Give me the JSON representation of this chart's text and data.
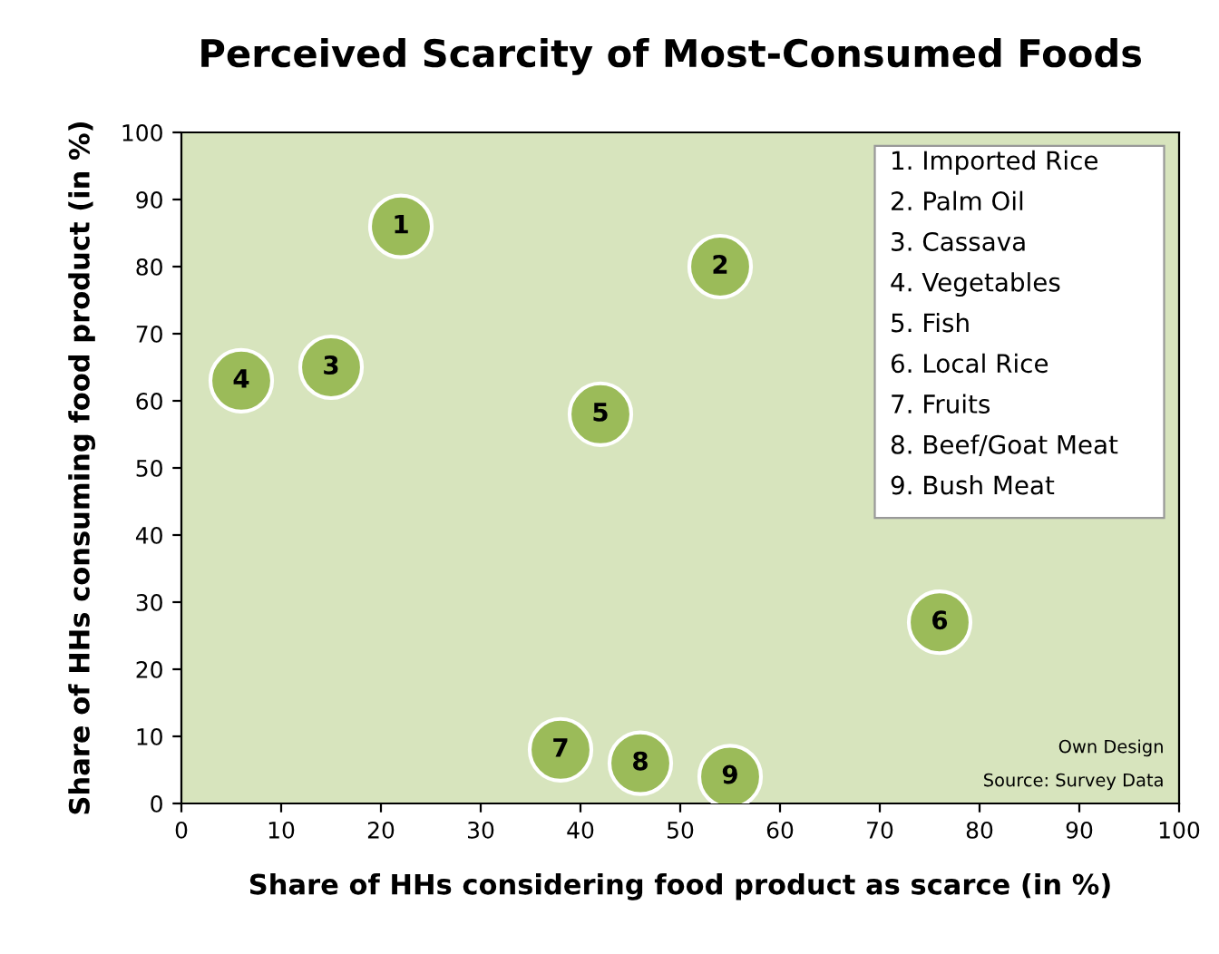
{
  "chart_data": {
    "type": "scatter",
    "title": "Perceived Scarcity of Most-Consumed Foods",
    "xlabel": "Share of HHs considering food product as scarce (in %)",
    "ylabel": "Share of HHs consuming food product (in %)",
    "x": [
      22,
      54,
      15,
      6,
      42,
      76,
      38,
      46,
      55
    ],
    "series": [
      {
        "color": "#9bbb59",
        "values": [
          86,
          80,
          65,
          63,
          58,
          27,
          8,
          6,
          4
        ]
      }
    ],
    "value_labels": [
      "1",
      "2",
      "3",
      "4",
      "5",
      "6",
      "7",
      "8",
      "9"
    ],
    "marker": "circle",
    "grid": false,
    "xlim": [
      0,
      100
    ],
    "ylim": [
      0,
      100
    ],
    "xticks": [
      0,
      10,
      20,
      30,
      40,
      50,
      60,
      70,
      80,
      90,
      100
    ],
    "yticks": [
      0,
      10,
      20,
      30,
      40,
      50,
      60,
      70,
      80,
      90,
      100
    ],
    "annotations": [
      "1. Imported Rice",
      "2. Palm Oil",
      "3. Cassava",
      "4. Vegetables",
      "5. Fish",
      "6. Local Rice",
      "7. Fruits",
      "8. Beef/Goat Meat",
      "9. Bush Meat",
      "Own Design",
      "Source: Survey Data"
    ]
  }
}
